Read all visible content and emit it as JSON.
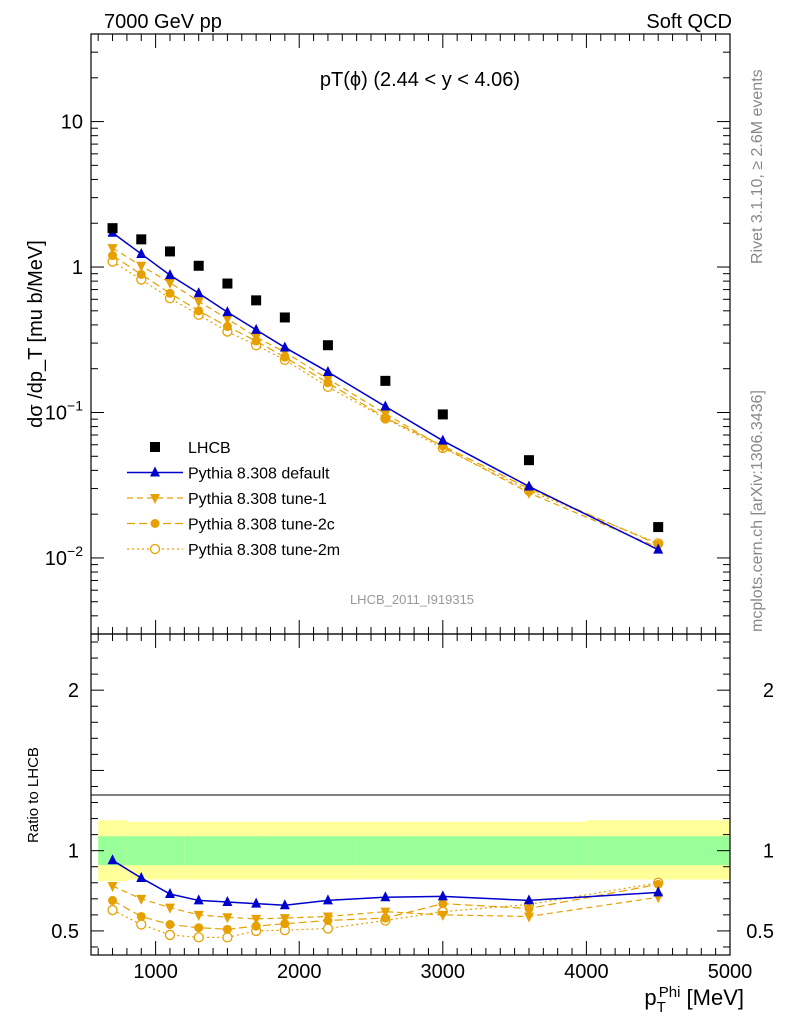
{
  "header": {
    "left": "7000 GeV pp",
    "right": "Soft QCD"
  },
  "side_labels": {
    "rivet": "Rivet 3.1.10, ≥ 2.6M events",
    "mcplots": "mcplots.cern.ch [arXiv:1306.3436]"
  },
  "colors": {
    "data": "#000000",
    "default": "#0000cc",
    "tunes": "#e6a000",
    "band_inner": "#99ff99",
    "band_outer": "#ffff99"
  },
  "chart_data": [
    {
      "type": "line",
      "panel": "main",
      "title": "pT(ϕ) (2.44 < y < 4.06)",
      "analysis_label": "LHCB_2011_I919315",
      "ylabel": "dσ /dp_T [mu b/MeV]",
      "yscale": "log",
      "ylim": [
        0.003,
        40
      ],
      "xlim": [
        550,
        5000
      ],
      "ytick_labels": [
        "10^-2",
        "10^-1",
        "1",
        "10"
      ],
      "legend_position": "lower-left",
      "x": [
        700,
        900,
        1100,
        1300,
        1500,
        1700,
        1900,
        2200,
        2600,
        3000,
        3600,
        4500
      ],
      "series": [
        {
          "name": "LHCB",
          "style": "square",
          "values": [
            1.85,
            1.55,
            1.28,
            1.02,
            0.77,
            0.59,
            0.45,
            0.29,
            0.165,
            0.097,
            0.047,
            0.0163
          ]
        },
        {
          "name": "Pythia 8.308 default",
          "style": "triangle-up",
          "values": [
            1.72,
            1.23,
            0.88,
            0.66,
            0.49,
            0.37,
            0.28,
            0.19,
            0.11,
            0.064,
            0.031,
            0.0114
          ]
        },
        {
          "name": "Pythia 8.308 tune-1",
          "style": "triangle-down",
          "values": [
            1.35,
            1.02,
            0.78,
            0.58,
            0.44,
            0.33,
            0.26,
            0.17,
            0.098,
            0.058,
            0.028,
            0.0118
          ]
        },
        {
          "name": "Pythia 8.308 tune-2c",
          "style": "circle-filled",
          "values": [
            1.2,
            0.89,
            0.66,
            0.5,
            0.39,
            0.31,
            0.24,
            0.16,
            0.092,
            0.059,
            0.03,
            0.0124
          ]
        },
        {
          "name": "Pythia 8.308 tune-2m",
          "style": "circle-open",
          "values": [
            1.09,
            0.82,
            0.61,
            0.47,
            0.36,
            0.29,
            0.23,
            0.15,
            0.091,
            0.057,
            0.029,
            0.0126
          ]
        }
      ]
    },
    {
      "type": "line",
      "panel": "ratio",
      "ylabel": "Ratio to LHCB",
      "xlabel": "p_T^Phi [MeV]",
      "xlim": [
        550,
        5000
      ],
      "ylim": [
        0.35,
        2.35
      ],
      "xtick_labels": [
        "1000",
        "2000",
        "3000",
        "4000",
        "5000"
      ],
      "ytick_labels": [
        "0.5",
        "1",
        "2"
      ],
      "x": [
        700,
        900,
        1100,
        1300,
        1500,
        1700,
        1900,
        2200,
        2600,
        3000,
        3600,
        4500
      ],
      "band_edges": [
        600,
        800,
        1000,
        1200,
        1400,
        1600,
        1800,
        2000,
        2400,
        2800,
        3200,
        4000,
        5000
      ],
      "band_inner": [
        [
          0.91,
          1.09
        ],
        [
          0.91,
          1.09
        ],
        [
          0.91,
          1.09
        ],
        [
          0.91,
          1.09
        ],
        [
          0.91,
          1.09
        ],
        [
          0.91,
          1.09
        ],
        [
          0.91,
          1.09
        ],
        [
          0.91,
          1.09
        ],
        [
          0.91,
          1.09
        ],
        [
          0.91,
          1.09
        ],
        [
          0.91,
          1.09
        ],
        [
          0.91,
          1.09
        ]
      ],
      "band_outer": [
        [
          0.81,
          1.19
        ],
        [
          0.82,
          1.18
        ],
        [
          0.82,
          1.18
        ],
        [
          0.82,
          1.18
        ],
        [
          0.82,
          1.18
        ],
        [
          0.82,
          1.18
        ],
        [
          0.82,
          1.18
        ],
        [
          0.82,
          1.18
        ],
        [
          0.82,
          1.18
        ],
        [
          0.82,
          1.18
        ],
        [
          0.82,
          1.18
        ],
        [
          0.82,
          1.19
        ]
      ],
      "series": [
        {
          "name": "Pythia 8.308 default",
          "style": "triangle-up",
          "values": [
            0.94,
            0.83,
            0.73,
            0.69,
            0.68,
            0.67,
            0.66,
            0.69,
            0.71,
            0.715,
            0.69,
            0.74
          ]
        },
        {
          "name": "Pythia 8.308 tune-1",
          "style": "triangle-down",
          "values": [
            0.78,
            0.7,
            0.645,
            0.6,
            0.585,
            0.575,
            0.58,
            0.59,
            0.62,
            0.6,
            0.59,
            0.71
          ]
        },
        {
          "name": "Pythia 8.308 tune-2c",
          "style": "circle-filled",
          "values": [
            0.69,
            0.59,
            0.54,
            0.52,
            0.51,
            0.53,
            0.545,
            0.565,
            0.58,
            0.67,
            0.64,
            0.79
          ]
        },
        {
          "name": "Pythia 8.308 tune-2m",
          "style": "circle-open",
          "values": [
            0.63,
            0.54,
            0.475,
            0.46,
            0.46,
            0.5,
            0.505,
            0.515,
            0.565,
            0.62,
            0.665,
            0.8
          ]
        }
      ]
    }
  ]
}
